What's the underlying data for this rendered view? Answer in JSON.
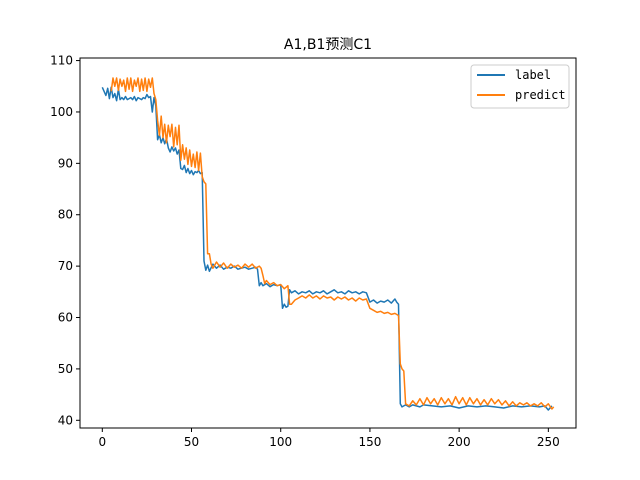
{
  "chart_data": {
    "type": "line",
    "title": "A1,B1预测C1",
    "xlabel": "",
    "ylabel": "",
    "xlim": [
      -12.5,
      265.5
    ],
    "ylim": [
      38.5,
      110.5
    ],
    "xticks": [
      0,
      50,
      100,
      150,
      200,
      250
    ],
    "yticks": [
      40,
      50,
      60,
      70,
      80,
      90,
      100,
      110
    ],
    "grid": false,
    "legend_position": "top-right",
    "series": [
      {
        "name": "label",
        "color": "#1f77b4",
        "x": [
          0,
          2,
          3,
          4,
          5,
          6,
          7,
          8,
          9,
          10,
          11,
          12,
          13,
          14,
          15,
          16,
          17,
          18,
          19,
          20,
          21,
          22,
          23,
          24,
          25,
          26,
          27,
          28,
          29,
          30,
          31,
          32,
          33,
          34,
          35,
          36,
          37,
          38,
          39,
          40,
          41,
          42,
          43,
          44,
          45,
          46,
          47,
          48,
          49,
          50,
          51,
          52,
          53,
          54,
          55,
          56,
          57,
          58,
          59,
          60,
          62,
          64,
          66,
          68,
          70,
          72,
          74,
          76,
          78,
          80,
          82,
          84,
          86,
          87,
          88,
          89,
          90,
          92,
          94,
          96,
          98,
          100,
          101,
          102,
          103,
          104,
          105,
          106,
          108,
          110,
          112,
          114,
          116,
          118,
          120,
          122,
          124,
          126,
          128,
          130,
          132,
          134,
          136,
          138,
          140,
          142,
          144,
          146,
          148,
          150,
          152,
          154,
          156,
          158,
          160,
          162,
          164,
          165,
          166,
          167,
          168,
          170,
          172,
          174,
          176,
          178,
          180,
          185,
          190,
          195,
          200,
          205,
          210,
          215,
          220,
          225,
          230,
          235,
          240,
          245,
          248,
          250,
          252
        ],
        "y": [
          104.8,
          103.2,
          104.6,
          102.6,
          104.8,
          102.8,
          103.6,
          102.2,
          104.4,
          102.4,
          102.8,
          102.4,
          103.0,
          102.4,
          102.6,
          102.8,
          102.4,
          103.0,
          102.2,
          102.8,
          102.6,
          102.4,
          102.8,
          102.6,
          103.4,
          102.8,
          103.0,
          100.0,
          102.8,
          101.2,
          94.6,
          95.6,
          94.0,
          95.0,
          93.8,
          94.8,
          93.0,
          92.2,
          93.2,
          92.4,
          93.0,
          91.8,
          92.6,
          89.0,
          88.8,
          89.6,
          88.2,
          89.0,
          88.0,
          88.6,
          87.8,
          88.4,
          88.2,
          88.6,
          88.0,
          88.2,
          71.0,
          69.2,
          70.2,
          69.0,
          70.4,
          69.6,
          70.2,
          69.4,
          69.8,
          69.6,
          70.0,
          69.4,
          69.6,
          69.8,
          69.4,
          69.6,
          69.8,
          69.4,
          66.2,
          66.8,
          66.2,
          66.6,
          66.0,
          66.4,
          66.2,
          66.4,
          61.8,
          62.6,
          62.0,
          62.2,
          65.4,
          64.8,
          65.2,
          64.6,
          65.0,
          64.8,
          65.2,
          64.6,
          65.0,
          64.8,
          65.2,
          64.6,
          65.0,
          65.4,
          64.8,
          65.0,
          64.6,
          65.2,
          64.8,
          65.0,
          64.6,
          65.0,
          64.8,
          63.0,
          63.4,
          62.8,
          63.2,
          63.0,
          63.4,
          62.8,
          63.6,
          63.0,
          62.6,
          43.2,
          42.6,
          43.0,
          42.6,
          43.0,
          42.8,
          42.6,
          43.0,
          42.8,
          42.6,
          42.8,
          42.4,
          42.8,
          42.6,
          42.8,
          42.6,
          42.4,
          42.8,
          42.6,
          42.8,
          42.6,
          42.8,
          42.0,
          42.8
        ]
      },
      {
        "name": "predict",
        "color": "#ff7f0e",
        "x": [
          5,
          6,
          7,
          8,
          9,
          10,
          11,
          12,
          13,
          14,
          15,
          16,
          17,
          18,
          19,
          20,
          21,
          22,
          23,
          24,
          25,
          26,
          27,
          28,
          29,
          30,
          31,
          32,
          33,
          34,
          35,
          36,
          37,
          38,
          39,
          40,
          41,
          42,
          43,
          44,
          45,
          46,
          47,
          48,
          49,
          50,
          51,
          52,
          53,
          54,
          55,
          56,
          57,
          58,
          59,
          60,
          61,
          62,
          64,
          66,
          68,
          70,
          72,
          74,
          76,
          78,
          80,
          82,
          84,
          86,
          88,
          89,
          90,
          91,
          92,
          94,
          96,
          98,
          100,
          102,
          104,
          105,
          106,
          107,
          108,
          110,
          112,
          114,
          116,
          118,
          120,
          122,
          124,
          126,
          128,
          130,
          132,
          134,
          136,
          138,
          140,
          142,
          144,
          146,
          148,
          150,
          152,
          154,
          156,
          158,
          160,
          162,
          164,
          166,
          167,
          168,
          169,
          170,
          171,
          172,
          174,
          176,
          178,
          180,
          182,
          184,
          186,
          188,
          190,
          192,
          194,
          196,
          198,
          200,
          202,
          204,
          206,
          208,
          210,
          212,
          214,
          216,
          218,
          220,
          222,
          224,
          226,
          228,
          230,
          232,
          234,
          236,
          238,
          240,
          242,
          244,
          246,
          248,
          250,
          252,
          253
        ],
        "y": [
          104.0,
          106.6,
          105.0,
          106.6,
          104.2,
          106.4,
          105.0,
          106.2,
          104.0,
          106.6,
          104.4,
          106.6,
          104.0,
          106.2,
          105.0,
          106.6,
          104.0,
          106.4,
          104.2,
          106.6,
          104.0,
          106.4,
          104.8,
          106.6,
          103.6,
          102.4,
          98.4,
          95.4,
          99.2,
          95.0,
          97.6,
          94.0,
          97.4,
          95.2,
          97.6,
          93.2,
          97.0,
          93.6,
          97.4,
          90.6,
          93.6,
          90.8,
          93.0,
          89.8,
          92.6,
          89.4,
          91.8,
          89.2,
          92.2,
          88.6,
          92.0,
          87.4,
          86.4,
          86.0,
          72.4,
          72.4,
          70.4,
          69.6,
          70.8,
          69.8,
          70.6,
          69.6,
          70.4,
          69.8,
          70.2,
          69.6,
          70.4,
          69.8,
          70.4,
          69.6,
          70.0,
          69.6,
          68.2,
          66.6,
          67.2,
          66.4,
          66.8,
          66.2,
          66.4,
          65.6,
          66.2,
          62.6,
          62.6,
          63.0,
          63.4,
          63.8,
          64.2,
          63.8,
          64.4,
          63.8,
          64.2,
          63.6,
          64.2,
          63.8,
          64.0,
          63.4,
          64.0,
          63.6,
          64.0,
          63.4,
          63.8,
          63.2,
          63.8,
          63.4,
          63.6,
          61.8,
          61.4,
          61.0,
          61.2,
          60.8,
          61.0,
          60.6,
          60.8,
          60.4,
          51.0,
          50.0,
          49.6,
          43.2,
          43.0,
          42.8,
          43.8,
          43.0,
          44.2,
          43.0,
          44.4,
          43.2,
          44.2,
          43.0,
          44.4,
          43.2,
          44.2,
          43.0,
          44.6,
          43.2,
          44.4,
          43.0,
          44.4,
          43.2,
          44.2,
          43.0,
          44.0,
          43.0,
          44.2,
          43.2,
          44.0,
          43.0,
          43.8,
          42.8,
          43.6,
          42.8,
          43.4,
          43.0,
          43.4,
          42.8,
          43.2,
          42.8,
          43.4,
          42.6,
          43.2,
          42.2,
          42.6
        ]
      }
    ]
  }
}
